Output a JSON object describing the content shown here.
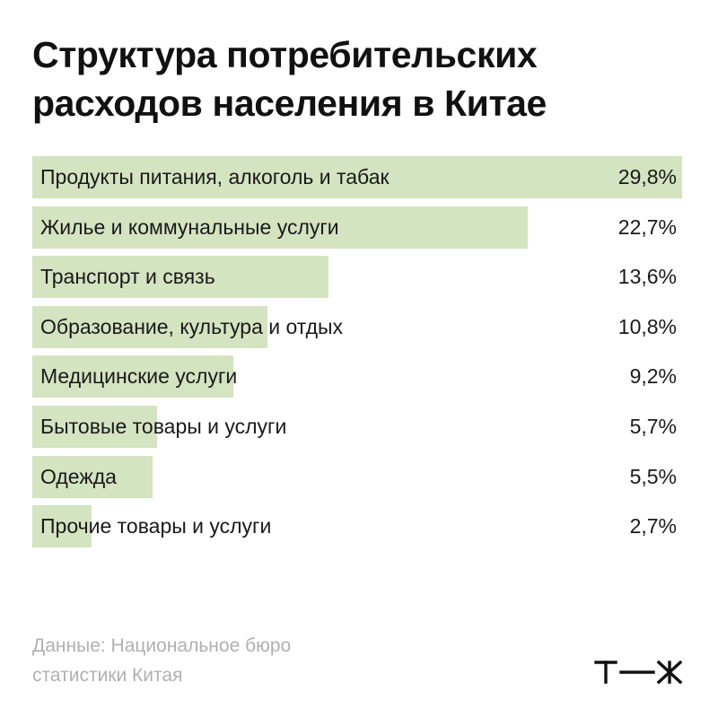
{
  "title": {
    "line1": "Структура потребительских",
    "line2": "расходов населения в Китае"
  },
  "source": {
    "line1": "Данные: Национальное бюро",
    "line2": "статистики Китая"
  },
  "logo": {
    "text": "т—ж"
  },
  "colors": {
    "bar": "#d4e3c0",
    "text": "#1a1a1a",
    "source": "#b0b0b0"
  },
  "chart_data": {
    "type": "bar",
    "orientation": "horizontal",
    "title": "Структура потребительских расходов населения в Китае",
    "categories": [
      "Продукты питания, алкоголь и табак",
      "Жилье и коммунальные услуги",
      "Транспорт и связь",
      "Образование, культура и отдых",
      "Медицинские услуги",
      "Бытовые товары и услуги",
      "Одежда",
      "Прочие товары и услуги"
    ],
    "values": [
      29.8,
      22.7,
      13.6,
      10.8,
      9.2,
      5.7,
      5.5,
      2.7
    ],
    "value_labels": [
      "29,8%",
      "22,7%",
      "13,6%",
      "10,8%",
      "9,2%",
      "5,7%",
      "5,5%",
      "2,7%"
    ],
    "unit": "%",
    "xlim": [
      0,
      29.8
    ],
    "grid": false,
    "legend": "none"
  }
}
